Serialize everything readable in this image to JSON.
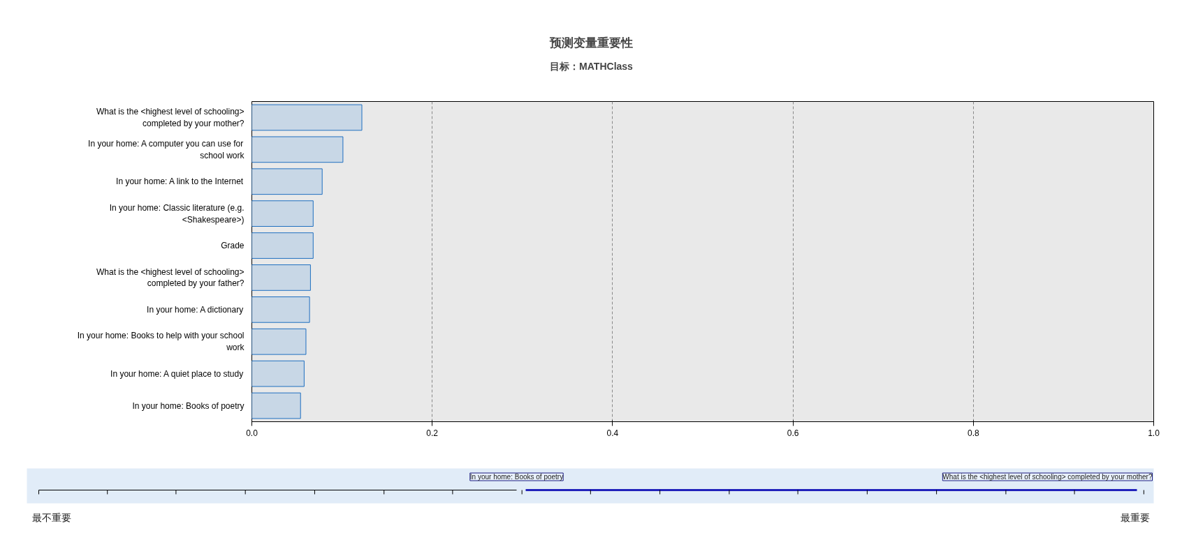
{
  "chart_data": {
    "type": "bar",
    "orientation": "horizontal",
    "title": "预测变量重要性",
    "subtitle": "目标：MATHClass",
    "categories": [
      "What is the <highest level of schooling> completed by your mother?",
      "In your home: A computer you can use for school work",
      "In your home: A link to the Internet",
      "In your home: Classic literature (e.g. <Shakespeare>)",
      "Grade",
      "What is the <highest level of schooling> completed by your father?",
      "In your home: A dictionary",
      "In your home: Books to help with your school work",
      "In your home: A quiet place to study",
      "In your home: Books of poetry"
    ],
    "series": [
      {
        "color": "#c8d7e6",
        "values": [
          0.122,
          0.101,
          0.078,
          0.068,
          0.068,
          0.065,
          0.064,
          0.06,
          0.058,
          0.054
        ]
      }
    ],
    "xlim": [
      0,
      1
    ],
    "xticks": [
      {
        "value": 0,
        "label": "0.0"
      },
      {
        "value": 0.2,
        "label": "0.2"
      },
      {
        "value": 0.4,
        "label": "0.4"
      },
      {
        "value": 0.6,
        "label": "0.6"
      },
      {
        "value": 0.8,
        "label": "0.8"
      },
      {
        "value": 1,
        "label": "1.0"
      }
    ],
    "grid": "x",
    "annotations": [
      "In your home: Books of poetry",
      "What is the <highest level of schooling> completed by your mother?",
      "最不重要",
      "最重要"
    ]
  }
}
